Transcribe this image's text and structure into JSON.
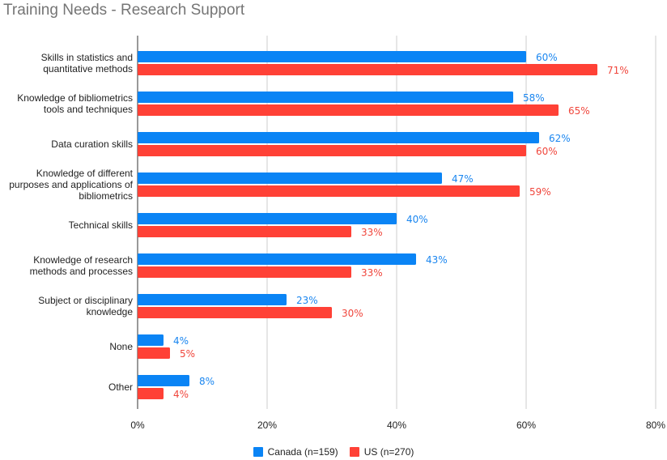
{
  "chart_data": {
    "type": "bar",
    "orientation": "horizontal",
    "title": "Training Needs - Research Support",
    "categories": [
      [
        "Skills in statistics and",
        "quantitative methods"
      ],
      [
        "Knowledge of bibliometrics",
        "tools and techniques"
      ],
      [
        "Data curation skills"
      ],
      [
        "Knowledge of different",
        "purposes and applications of",
        "bibliometrics"
      ],
      [
        "Technical skills"
      ],
      [
        "Knowledge of research",
        "methods and processes"
      ],
      [
        "Subject or disciplinary",
        "knowledge"
      ],
      [
        "None"
      ],
      [
        "Other"
      ]
    ],
    "series": [
      {
        "name": "Canada (n=159)",
        "color": "#0a84f5",
        "label_color": "#1a86f0",
        "values": [
          60,
          58,
          62,
          47,
          40,
          43,
          23,
          4,
          8
        ]
      },
      {
        "name": "US (n=270)",
        "color": "#ff4136",
        "label_color": "#f0463c",
        "values": [
          71,
          65,
          60,
          59,
          33,
          33,
          30,
          5,
          4
        ]
      }
    ],
    "xlim": [
      0,
      80
    ],
    "xticks": [
      0,
      20,
      40,
      60,
      80
    ],
    "tick_suffix": "%",
    "grid": true,
    "legend": "bottom"
  }
}
